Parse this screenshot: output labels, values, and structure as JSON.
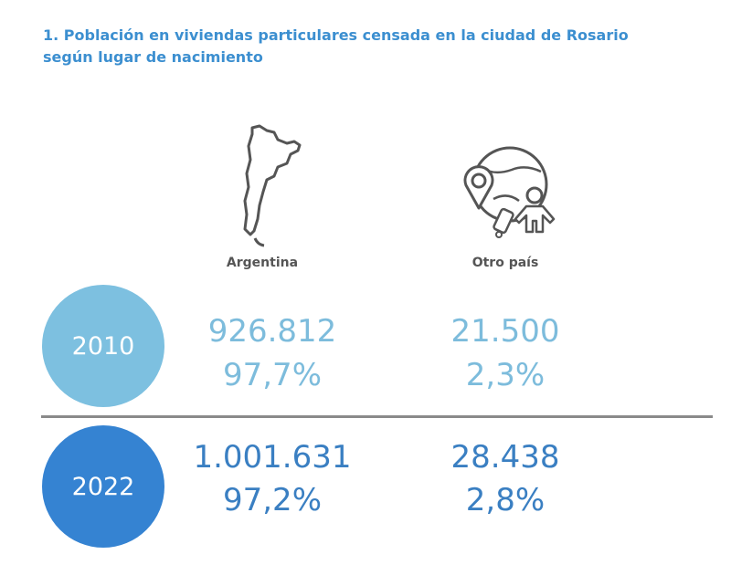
{
  "title": "1. Población en viviendas particulares censada en la ciudad de Rosario según lugar de nacimiento",
  "columns": [
    {
      "label": "Argentina",
      "icon": "argentina-map-icon"
    },
    {
      "label": "Otro país",
      "icon": "globe-traveler-icon"
    }
  ],
  "rows": [
    {
      "year": "2010",
      "color": "#7dc0e0",
      "argentina_count": "926.812",
      "argentina_pct": "97,7%",
      "otro_count": "21.500",
      "otro_pct": "2,3%"
    },
    {
      "year": "2022",
      "color": "#3583d2",
      "argentina_count": "1.001.631",
      "argentina_pct": "97,2%",
      "otro_count": "28.438",
      "otro_pct": "2,8%"
    }
  ]
}
